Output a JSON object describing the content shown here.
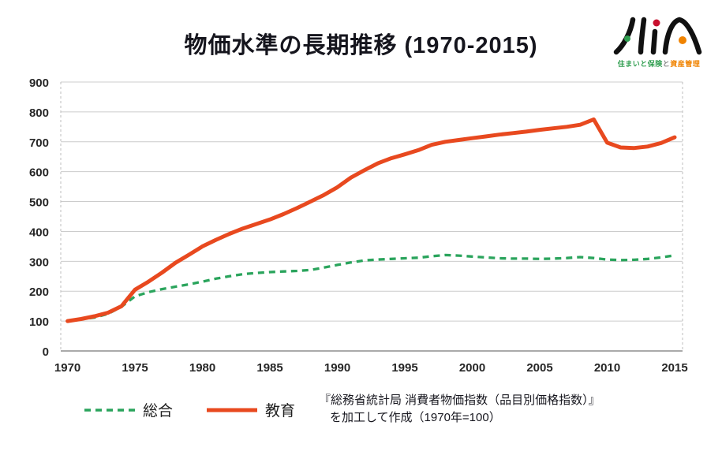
{
  "page": {
    "title": "物価水準の長期推移 (1970-2015)"
  },
  "logo": {
    "name": "HiA",
    "tagline_part1": "住まいと保険",
    "tagline_part2": "と",
    "tagline_part3": "資産管理",
    "dot_green": "#2f9e4f",
    "dot_red": "#c8102e",
    "dot_orange": "#f08300"
  },
  "legend": [
    {
      "label": "総合",
      "color": "#2aa45c",
      "style": "dashed"
    },
    {
      "label": "教育",
      "color": "#e8491f",
      "style": "solid"
    }
  ],
  "source": {
    "line1": "『総務省統計局 消費者物価指数（品目別価格指数）』",
    "line2": "を加工して作成（1970年=100）"
  },
  "chart_data": {
    "type": "line",
    "title": "物価水準の長期推移 (1970-2015)",
    "note": "1970年=100",
    "x": [
      1970,
      1971,
      1972,
      1973,
      1974,
      1975,
      1976,
      1977,
      1978,
      1979,
      1980,
      1981,
      1982,
      1983,
      1984,
      1985,
      1986,
      1987,
      1988,
      1989,
      1990,
      1991,
      1992,
      1993,
      1994,
      1995,
      1996,
      1997,
      1998,
      1999,
      2000,
      2001,
      2002,
      2003,
      2004,
      2005,
      2006,
      2007,
      2008,
      2009,
      2010,
      2011,
      2012,
      2013,
      2014,
      2015
    ],
    "x_tick_labels": [
      1970,
      1975,
      1980,
      1985,
      1990,
      1995,
      2000,
      2005,
      2010,
      2015
    ],
    "ylim": [
      0,
      900
    ],
    "y_ticks": [
      0,
      100,
      200,
      300,
      400,
      500,
      600,
      700,
      800,
      900
    ],
    "grid": "horizontal",
    "legend_position": "bottom",
    "series": [
      {
        "name": "総合",
        "color": "#2aa45c",
        "line_style": "dashed",
        "values": [
          100,
          106,
          112,
          124,
          148,
          183,
          197,
          207,
          215,
          223,
          232,
          242,
          250,
          257,
          261,
          264,
          266,
          268,
          271,
          279,
          288,
          296,
          303,
          306,
          308,
          310,
          312,
          317,
          321,
          319,
          316,
          313,
          310,
          309,
          309,
          308,
          309,
          311,
          314,
          311,
          306,
          304,
          305,
          308,
          313,
          320
        ]
      },
      {
        "name": "教育",
        "color": "#e8491f",
        "line_style": "solid",
        "values": [
          100,
          107,
          116,
          128,
          150,
          205,
          232,
          262,
          295,
          322,
          350,
          372,
          392,
          410,
          425,
          440,
          458,
          478,
          500,
          522,
          548,
          580,
          605,
          628,
          645,
          658,
          672,
          690,
          700,
          706,
          712,
          718,
          724,
          729,
          734,
          740,
          745,
          750,
          757,
          775,
          697,
          681,
          679,
          684,
          696,
          715
        ]
      }
    ]
  }
}
